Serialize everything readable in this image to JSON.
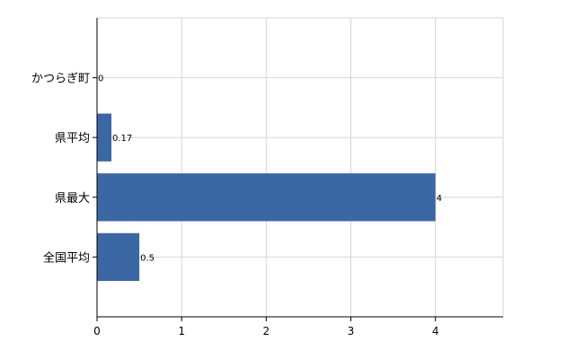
{
  "chart_data": {
    "type": "bar",
    "orientation": "horizontal",
    "categories": [
      "かつらぎ町",
      "県平均",
      "県最大",
      "全国平均"
    ],
    "values": [
      0,
      0.17,
      4,
      0.5
    ],
    "value_labels": [
      "0",
      "0.17",
      "4",
      "0.5"
    ],
    "x_ticks": [
      0,
      1,
      2,
      3,
      4
    ],
    "xlim": [
      0,
      4.8
    ],
    "grid": true,
    "bar_color": "#3b67a4"
  }
}
